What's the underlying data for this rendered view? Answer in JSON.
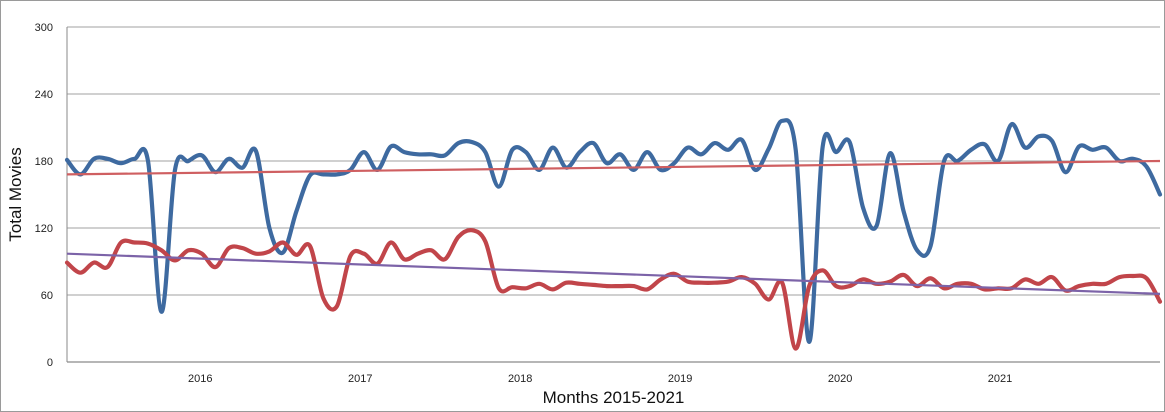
{
  "chart_data": {
    "type": "line",
    "title": "",
    "xlabel": "Months 2015-2021",
    "ylabel": "Total Movies",
    "ylim": [
      0,
      300
    ],
    "yticks": [
      0,
      60,
      120,
      180,
      240,
      300
    ],
    "x_tick_labels": [
      "2016",
      "2017",
      "2018",
      "2019",
      "2020",
      "2021"
    ],
    "x_range_months": [
      0,
      82
    ],
    "grid": true,
    "legend": "none",
    "series": [
      {
        "color": "#3e6aa0",
        "values": [
          181,
          168,
          182,
          182,
          178,
          182,
          180,
          45,
          172,
          180,
          185,
          170,
          182,
          174,
          189,
          120,
          98,
          135,
          167,
          168,
          168,
          172,
          188,
          172,
          193,
          188,
          186,
          186,
          185,
          196,
          197,
          188,
          157,
          190,
          188,
          172,
          192,
          174,
          188,
          196,
          178,
          186,
          172,
          188,
          172,
          178,
          192,
          186,
          196,
          190,
          199,
          172,
          191,
          216,
          190,
          18,
          193,
          188,
          197,
          138,
          122,
          187,
          135,
          100,
          104,
          180,
          180,
          190,
          195,
          180,
          213,
          192,
          202,
          198,
          170,
          193,
          190,
          192,
          180,
          182,
          175,
          150
        ]
      },
      {
        "color": "#c1454a",
        "values": [
          89,
          80,
          89,
          85,
          107,
          107,
          106,
          100,
          91,
          100,
          97,
          85,
          102,
          102,
          97,
          99,
          107,
          96,
          104,
          57,
          50,
          95,
          97,
          88,
          107,
          92,
          97,
          100,
          92,
          112,
          118,
          108,
          66,
          67,
          66,
          70,
          65,
          71,
          70,
          69,
          68,
          68,
          68,
          65,
          74,
          79,
          72,
          71,
          71,
          72,
          76,
          70,
          56,
          71,
          12,
          68,
          82,
          68,
          68,
          74,
          70,
          72,
          78,
          68,
          75,
          66,
          70,
          70,
          65,
          66,
          66,
          74,
          70,
          76,
          64,
          68,
          70,
          70,
          76,
          77,
          75,
          54
        ]
      },
      {
        "color": "#cf5f61",
        "trendline": true,
        "values": [
          168,
          180
        ]
      },
      {
        "color": "#7c63a8",
        "trendline": true,
        "values": [
          97,
          61
        ]
      }
    ]
  }
}
